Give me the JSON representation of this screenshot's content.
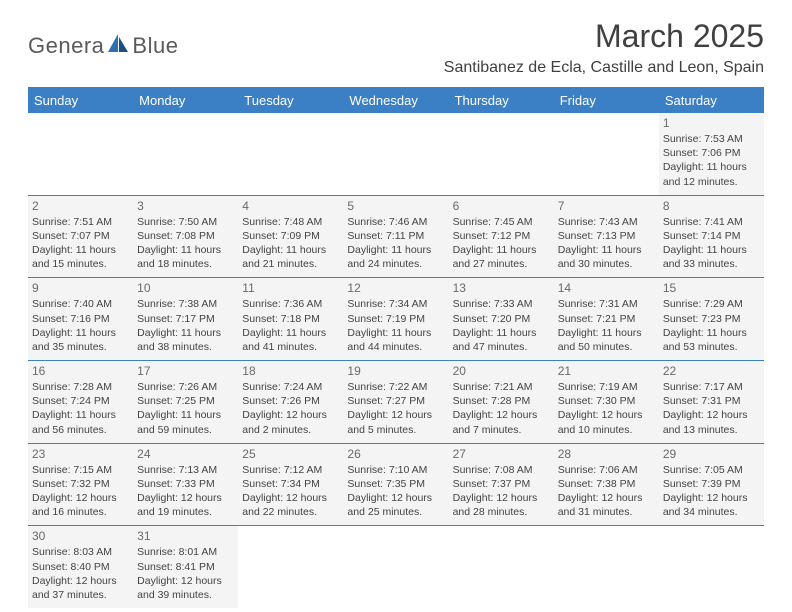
{
  "logo": {
    "text_left": "Genera",
    "text_right": "Blue"
  },
  "header": {
    "month_title": "March 2025",
    "location": "Santibanez de Ecla, Castille and Leon, Spain"
  },
  "colors": {
    "header_bg": "#3b7fc4",
    "header_text": "#ffffff",
    "cell_bg": "#f4f4f4",
    "border": "#3b7fc4",
    "logo_blue": "#2f6fb0"
  },
  "weekdays": [
    "Sunday",
    "Monday",
    "Tuesday",
    "Wednesday",
    "Thursday",
    "Friday",
    "Saturday"
  ],
  "weeks": [
    [
      null,
      null,
      null,
      null,
      null,
      null,
      {
        "n": "1",
        "sr": "Sunrise: 7:53 AM",
        "ss": "Sunset: 7:06 PM",
        "dl": "Daylight: 11 hours and 12 minutes."
      }
    ],
    [
      {
        "n": "2",
        "sr": "Sunrise: 7:51 AM",
        "ss": "Sunset: 7:07 PM",
        "dl": "Daylight: 11 hours and 15 minutes."
      },
      {
        "n": "3",
        "sr": "Sunrise: 7:50 AM",
        "ss": "Sunset: 7:08 PM",
        "dl": "Daylight: 11 hours and 18 minutes."
      },
      {
        "n": "4",
        "sr": "Sunrise: 7:48 AM",
        "ss": "Sunset: 7:09 PM",
        "dl": "Daylight: 11 hours and 21 minutes."
      },
      {
        "n": "5",
        "sr": "Sunrise: 7:46 AM",
        "ss": "Sunset: 7:11 PM",
        "dl": "Daylight: 11 hours and 24 minutes."
      },
      {
        "n": "6",
        "sr": "Sunrise: 7:45 AM",
        "ss": "Sunset: 7:12 PM",
        "dl": "Daylight: 11 hours and 27 minutes."
      },
      {
        "n": "7",
        "sr": "Sunrise: 7:43 AM",
        "ss": "Sunset: 7:13 PM",
        "dl": "Daylight: 11 hours and 30 minutes."
      },
      {
        "n": "8",
        "sr": "Sunrise: 7:41 AM",
        "ss": "Sunset: 7:14 PM",
        "dl": "Daylight: 11 hours and 33 minutes."
      }
    ],
    [
      {
        "n": "9",
        "sr": "Sunrise: 7:40 AM",
        "ss": "Sunset: 7:16 PM",
        "dl": "Daylight: 11 hours and 35 minutes."
      },
      {
        "n": "10",
        "sr": "Sunrise: 7:38 AM",
        "ss": "Sunset: 7:17 PM",
        "dl": "Daylight: 11 hours and 38 minutes."
      },
      {
        "n": "11",
        "sr": "Sunrise: 7:36 AM",
        "ss": "Sunset: 7:18 PM",
        "dl": "Daylight: 11 hours and 41 minutes."
      },
      {
        "n": "12",
        "sr": "Sunrise: 7:34 AM",
        "ss": "Sunset: 7:19 PM",
        "dl": "Daylight: 11 hours and 44 minutes."
      },
      {
        "n": "13",
        "sr": "Sunrise: 7:33 AM",
        "ss": "Sunset: 7:20 PM",
        "dl": "Daylight: 11 hours and 47 minutes."
      },
      {
        "n": "14",
        "sr": "Sunrise: 7:31 AM",
        "ss": "Sunset: 7:21 PM",
        "dl": "Daylight: 11 hours and 50 minutes."
      },
      {
        "n": "15",
        "sr": "Sunrise: 7:29 AM",
        "ss": "Sunset: 7:23 PM",
        "dl": "Daylight: 11 hours and 53 minutes."
      }
    ],
    [
      {
        "n": "16",
        "sr": "Sunrise: 7:28 AM",
        "ss": "Sunset: 7:24 PM",
        "dl": "Daylight: 11 hours and 56 minutes."
      },
      {
        "n": "17",
        "sr": "Sunrise: 7:26 AM",
        "ss": "Sunset: 7:25 PM",
        "dl": "Daylight: 11 hours and 59 minutes."
      },
      {
        "n": "18",
        "sr": "Sunrise: 7:24 AM",
        "ss": "Sunset: 7:26 PM",
        "dl": "Daylight: 12 hours and 2 minutes."
      },
      {
        "n": "19",
        "sr": "Sunrise: 7:22 AM",
        "ss": "Sunset: 7:27 PM",
        "dl": "Daylight: 12 hours and 5 minutes."
      },
      {
        "n": "20",
        "sr": "Sunrise: 7:21 AM",
        "ss": "Sunset: 7:28 PM",
        "dl": "Daylight: 12 hours and 7 minutes."
      },
      {
        "n": "21",
        "sr": "Sunrise: 7:19 AM",
        "ss": "Sunset: 7:30 PM",
        "dl": "Daylight: 12 hours and 10 minutes."
      },
      {
        "n": "22",
        "sr": "Sunrise: 7:17 AM",
        "ss": "Sunset: 7:31 PM",
        "dl": "Daylight: 12 hours and 13 minutes."
      }
    ],
    [
      {
        "n": "23",
        "sr": "Sunrise: 7:15 AM",
        "ss": "Sunset: 7:32 PM",
        "dl": "Daylight: 12 hours and 16 minutes."
      },
      {
        "n": "24",
        "sr": "Sunrise: 7:13 AM",
        "ss": "Sunset: 7:33 PM",
        "dl": "Daylight: 12 hours and 19 minutes."
      },
      {
        "n": "25",
        "sr": "Sunrise: 7:12 AM",
        "ss": "Sunset: 7:34 PM",
        "dl": "Daylight: 12 hours and 22 minutes."
      },
      {
        "n": "26",
        "sr": "Sunrise: 7:10 AM",
        "ss": "Sunset: 7:35 PM",
        "dl": "Daylight: 12 hours and 25 minutes."
      },
      {
        "n": "27",
        "sr": "Sunrise: 7:08 AM",
        "ss": "Sunset: 7:37 PM",
        "dl": "Daylight: 12 hours and 28 minutes."
      },
      {
        "n": "28",
        "sr": "Sunrise: 7:06 AM",
        "ss": "Sunset: 7:38 PM",
        "dl": "Daylight: 12 hours and 31 minutes."
      },
      {
        "n": "29",
        "sr": "Sunrise: 7:05 AM",
        "ss": "Sunset: 7:39 PM",
        "dl": "Daylight: 12 hours and 34 minutes."
      }
    ],
    [
      {
        "n": "30",
        "sr": "Sunrise: 8:03 AM",
        "ss": "Sunset: 8:40 PM",
        "dl": "Daylight: 12 hours and 37 minutes."
      },
      {
        "n": "31",
        "sr": "Sunrise: 8:01 AM",
        "ss": "Sunset: 8:41 PM",
        "dl": "Daylight: 12 hours and 39 minutes."
      },
      null,
      null,
      null,
      null,
      null
    ]
  ]
}
